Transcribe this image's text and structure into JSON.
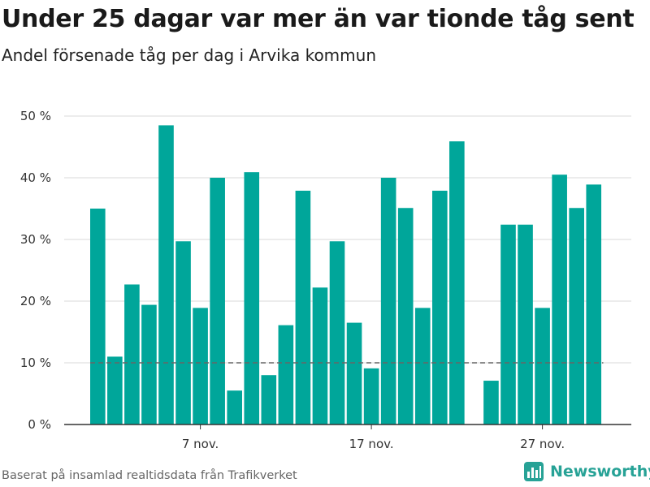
{
  "title": "Under 25 dagar var mer än var tionde tåg sent",
  "subtitle": "Andel försenade tåg per dag i Arvika kommun",
  "source": "Baserat på insamlad realtidsdata från Trafikverket",
  "brand": "Newsworthy",
  "colors": {
    "bar": "#00a69a",
    "reference": "#666666",
    "brand": "#27a296"
  },
  "chart_data": {
    "type": "bar",
    "x": [
      "2023-11-01",
      "2023-11-02",
      "2023-11-03",
      "2023-11-04",
      "2023-11-05",
      "2023-11-06",
      "2023-11-07",
      "2023-11-08",
      "2023-11-09",
      "2023-11-10",
      "2023-11-11",
      "2023-11-12",
      "2023-11-13",
      "2023-11-14",
      "2023-11-15",
      "2023-11-16",
      "2023-11-17",
      "2023-11-18",
      "2023-11-19",
      "2023-11-20",
      "2023-11-21",
      "2023-11-22",
      "2023-11-23",
      "2023-11-24",
      "2023-11-25",
      "2023-11-26",
      "2023-11-27",
      "2023-11-28",
      "2023-11-29",
      "2023-11-30"
    ],
    "values": [
      35,
      11,
      22.7,
      19.4,
      48.5,
      29.7,
      18.9,
      40,
      5.5,
      40.9,
      8,
      16.1,
      37.9,
      22.2,
      29.7,
      16.5,
      9.1,
      40,
      35.1,
      18.9,
      37.9,
      45.9,
      null,
      7.1,
      32.4,
      32.4,
      18.9,
      40.5,
      35.1,
      38.9
    ],
    "xticks": [
      {
        "x": "2023-11-07",
        "label": "7 nov."
      },
      {
        "x": "2023-11-17",
        "label": "17 nov."
      },
      {
        "x": "2023-11-27",
        "label": "27 nov."
      }
    ],
    "ylim": [
      0,
      50
    ],
    "yticks": [
      {
        "value": 0,
        "label": "0 %"
      },
      {
        "value": 10,
        "label": "10 %"
      },
      {
        "value": 20,
        "label": "20 %"
      },
      {
        "value": 30,
        "label": "30 %"
      },
      {
        "value": 40,
        "label": "40 %"
      },
      {
        "value": 50,
        "label": "50 %"
      }
    ],
    "reference_line": 10,
    "grid": true,
    "legend": "none"
  }
}
